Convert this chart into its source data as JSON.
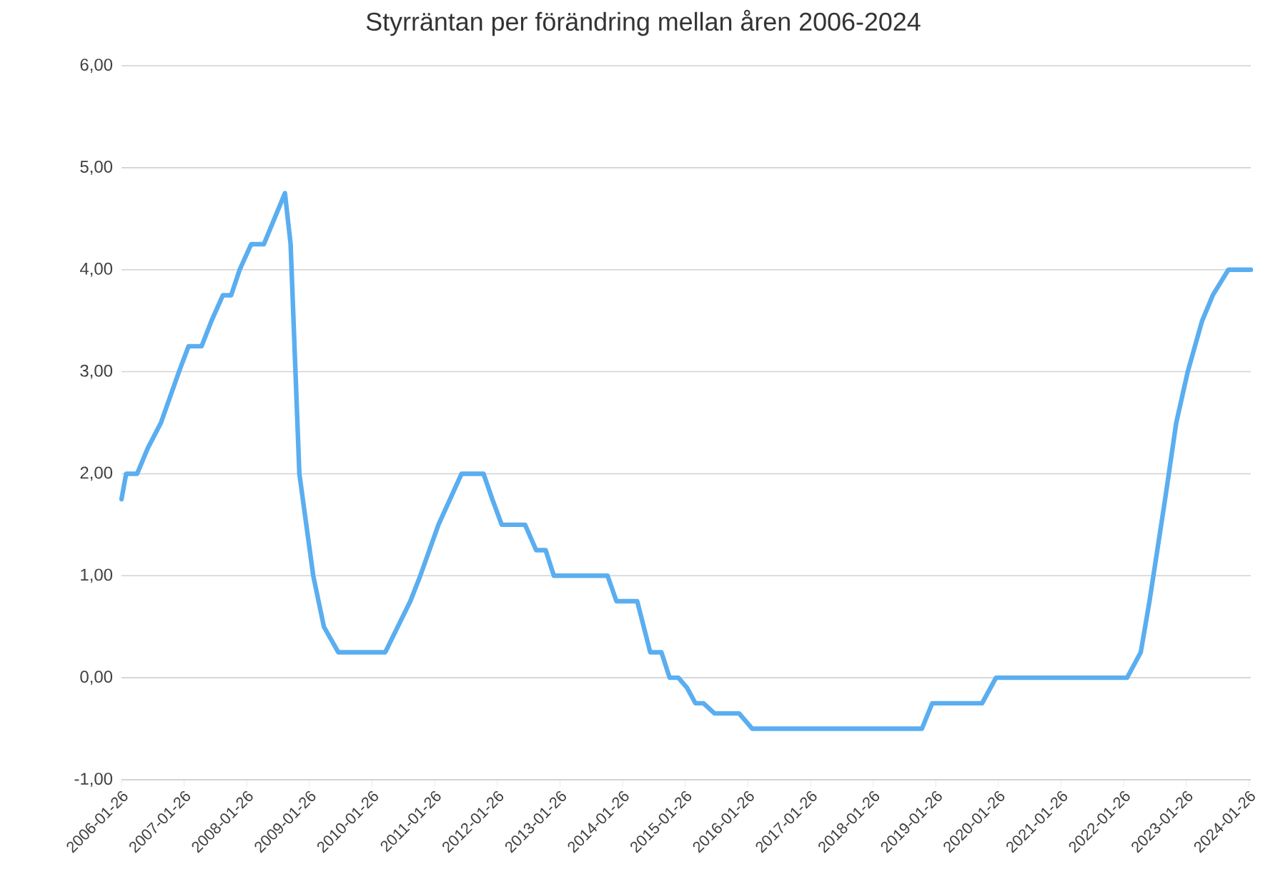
{
  "chart_data": {
    "type": "line",
    "title": "Styrräntan per förändring mellan åren 2006-2024",
    "x": [
      "2006-01-26",
      "2006-02-22",
      "2006-04-27",
      "2006-06-28",
      "2006-09-13",
      "2006-12-27",
      "2007-02-21",
      "2007-05-08",
      "2007-07-05",
      "2007-09-09",
      "2007-10-27",
      "2007-12-16",
      "2008-02-21",
      "2008-05-05",
      "2008-09-05",
      "2008-10-08",
      "2008-11-28",
      "2009-02-17",
      "2009-04-20",
      "2009-07-13",
      "2010-04-13",
      "2010-06-25",
      "2010-09-06",
      "2010-11-03",
      "2011-02-17",
      "2011-07-02",
      "2011-11-07",
      "2011-12-28",
      "2012-02-21",
      "2012-07-06",
      "2012-09-09",
      "2012-11-03",
      "2012-12-21",
      "2013-10-30",
      "2013-12-21",
      "2014-04-21",
      "2014-07-06",
      "2014-09-09",
      "2014-10-27",
      "2014-12-17",
      "2015-02-06",
      "2015-03-26",
      "2015-05-12",
      "2015-07-16",
      "2015-12-06",
      "2016-02-21",
      "2018-11-06",
      "2019-01-05",
      "2019-10-23",
      "2020-01-12",
      "2022-02-14",
      "2022-05-05",
      "2022-06-25",
      "2022-09-24",
      "2022-11-28",
      "2023-02-03",
      "2023-04-28",
      "2023-06-29",
      "2023-09-28",
      "2024-02-06"
    ],
    "series": [
      {
        "color": "#5aaef0",
        "values": [
          1.75,
          2.0,
          2.0,
          2.25,
          2.5,
          3.0,
          3.25,
          3.25,
          3.5,
          3.75,
          3.75,
          4.0,
          4.25,
          4.25,
          4.75,
          4.25,
          2.0,
          1.0,
          0.5,
          0.25,
          0.25,
          0.5,
          0.75,
          1.0,
          1.5,
          2.0,
          2.0,
          1.75,
          1.5,
          1.5,
          1.25,
          1.25,
          1.0,
          1.0,
          0.75,
          0.75,
          0.25,
          0.25,
          0.0,
          0.0,
          -0.1,
          -0.25,
          -0.25,
          -0.35,
          -0.35,
          -0.5,
          -0.5,
          -0.25,
          -0.25,
          0.0,
          0.0,
          0.25,
          0.75,
          1.75,
          2.5,
          3.0,
          3.5,
          3.75,
          4.0,
          4.0
        ]
      }
    ],
    "xlim": [
      "2006-01-26",
      "2024-02-06"
    ],
    "xticks": [
      "2006-01-26",
      "2007-01-26",
      "2008-01-26",
      "2009-01-26",
      "2010-01-26",
      "2011-01-26",
      "2012-01-26",
      "2013-01-26",
      "2014-01-26",
      "2015-01-26",
      "2016-01-26",
      "2017-01-26",
      "2018-01-26",
      "2019-01-26",
      "2020-01-26",
      "2021-01-26",
      "2022-01-26",
      "2023-01-26",
      "2024-01-26"
    ],
    "ylim": [
      -1,
      6
    ],
    "yticks": [
      {
        "value": -1,
        "label": "-1,00"
      },
      {
        "value": 0,
        "label": "0,00"
      },
      {
        "value": 1,
        "label": "1,00"
      },
      {
        "value": 2,
        "label": "2,00"
      },
      {
        "value": 3,
        "label": "3,00"
      },
      {
        "value": 4,
        "label": "4,00"
      },
      {
        "value": 5,
        "label": "5,00"
      },
      {
        "value": 6,
        "label": "6,00"
      }
    ],
    "grid": "y",
    "legend": false,
    "marker": "none",
    "line_style": "solid"
  }
}
